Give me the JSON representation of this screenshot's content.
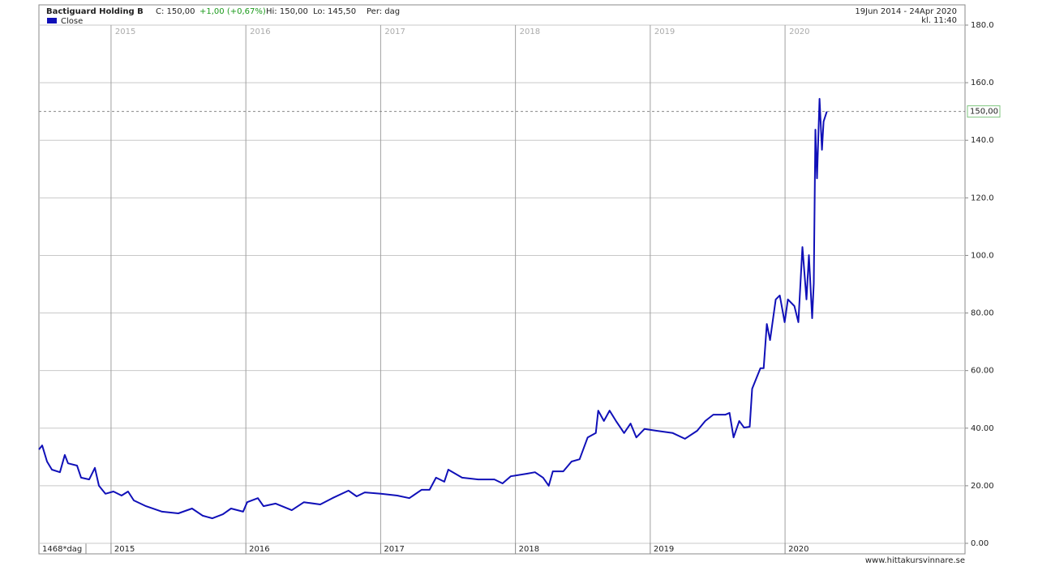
{
  "chart_data": {
    "type": "line",
    "title": "Bactiguard Holding B",
    "close_label": "C: 150,00",
    "change_label": "+1,00 (+0,67%)",
    "high_label": "Hi: 150,00",
    "low_label": "Lo: 145,50",
    "period_label": "Per: dag",
    "date_range": "19Jun 2014 - 24Apr 2020",
    "time_label": "kl. 11:40",
    "bar_count_label": "1468*dag",
    "source": "www.hittakursvinnare.se",
    "x": [
      2014.465,
      2014.489,
      2014.525,
      2014.561,
      2014.621,
      2014.657,
      2014.681,
      2014.748,
      2014.778,
      2014.838,
      2014.88,
      2014.91,
      2014.958,
      2015.018,
      2015.078,
      2015.126,
      2015.169,
      2015.259,
      2015.379,
      2015.499,
      2015.601,
      2015.68,
      2015.752,
      2015.83,
      2015.89,
      2015.98,
      2016.01,
      2016.089,
      2016.131,
      2016.221,
      2016.341,
      2016.431,
      2016.552,
      2016.642,
      2016.762,
      2016.822,
      2016.882,
      2017.002,
      2017.123,
      2017.213,
      2017.303,
      2017.363,
      2017.411,
      2017.472,
      2017.502,
      2017.604,
      2017.724,
      2017.844,
      2017.904,
      2017.965,
      2018.085,
      2018.145,
      2018.205,
      2018.247,
      2018.277,
      2018.355,
      2018.416,
      2018.476,
      2018.536,
      2018.596,
      2018.614,
      2018.656,
      2018.698,
      2018.746,
      2018.806,
      2018.854,
      2018.897,
      2018.957,
      2019.047,
      2019.167,
      2019.257,
      2019.348,
      2019.408,
      2019.468,
      2019.558,
      2019.588,
      2019.618,
      2019.66,
      2019.696,
      2019.738,
      2019.756,
      2019.817,
      2019.841,
      2019.865,
      2019.889,
      2019.931,
      2019.961,
      2019.997,
      2020.021,
      2020.069,
      2020.099,
      2020.129,
      2020.159,
      2020.177,
      2020.201,
      2020.213,
      2020.225,
      2020.237,
      2020.256,
      2020.274,
      2020.286,
      2020.31
    ],
    "series": [
      {
        "name": "Close",
        "color": "#1010b8",
        "values": [
          32.6,
          34,
          28.4,
          25.6,
          24.7,
          30.7,
          27.8,
          27,
          22.8,
          22.2,
          26.2,
          20,
          17.2,
          18,
          16.6,
          18,
          14.9,
          12.9,
          11,
          10.4,
          12.1,
          9.6,
          8.7,
          10.1,
          12.1,
          11,
          14.3,
          15.7,
          12.9,
          13.8,
          11.5,
          14.3,
          13.5,
          15.7,
          18.3,
          16.3,
          17.7,
          17.2,
          16.6,
          15.7,
          18.6,
          18.6,
          22.8,
          21.4,
          25.6,
          22.8,
          22.2,
          22.2,
          20.8,
          23.3,
          24.2,
          24.7,
          22.8,
          20,
          25,
          25,
          28.4,
          29.2,
          36.8,
          38.3,
          46.1,
          42.5,
          46.1,
          42.5,
          38.3,
          41.6,
          36.8,
          39.7,
          39.1,
          38.3,
          36.3,
          39.1,
          42.5,
          44.7,
          44.7,
          45.3,
          36.8,
          42.5,
          40.2,
          40.5,
          53.7,
          60.8,
          60.8,
          76.2,
          70.6,
          84.7,
          86.1,
          76.8,
          84.7,
          82.4,
          76.8,
          102.9,
          84.7,
          100.1,
          78.2,
          90.3,
          143.7,
          126.8,
          154.4,
          136.7,
          146.5,
          150
        ]
      }
    ],
    "last_value": {
      "value": 150,
      "label": "150,00"
    },
    "xlim": [
      2014.465,
      2021.335
    ],
    "xticks": [
      2015,
      2016,
      2017,
      2018,
      2019,
      2020
    ],
    "ylim": [
      0,
      180
    ],
    "yticks": [
      {
        "value": 0,
        "label": "0.00"
      },
      {
        "value": 20,
        "label": "20.00"
      },
      {
        "value": 40,
        "label": "40.00"
      },
      {
        "value": 60,
        "label": "60.00"
      },
      {
        "value": 80,
        "label": "80.00"
      },
      {
        "value": 100,
        "label": "100.0"
      },
      {
        "value": 120,
        "label": "120.0"
      },
      {
        "value": 140,
        "label": "140.0"
      },
      {
        "value": 160,
        "label": "160.0"
      },
      {
        "value": 180,
        "label": "180.0"
      }
    ],
    "grid": true
  }
}
